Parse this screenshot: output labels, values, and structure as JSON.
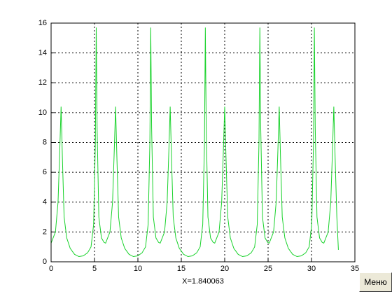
{
  "chart_data": {
    "type": "line",
    "xlabel": "X=1.840063",
    "color": "#19d22b",
    "grid": true,
    "xlim": [
      0,
      35
    ],
    "xticks": [
      0,
      5,
      10,
      15,
      20,
      25,
      30,
      35
    ],
    "ylim": [
      0,
      16
    ],
    "yticks": [
      0,
      2,
      4,
      6,
      8,
      10,
      12,
      14,
      16
    ],
    "x": [
      0,
      0.5,
      0.8,
      1.0,
      1.15,
      1.3,
      1.5,
      1.8,
      2.2,
      2.7,
      3.2,
      3.7,
      4.2,
      4.6,
      4.9,
      5.1,
      5.2,
      5.3,
      5.5,
      5.8,
      6.1,
      6.28,
      6.78,
      7.08,
      7.28,
      7.43,
      7.58,
      7.78,
      8.08,
      8.48,
      8.98,
      9.48,
      9.98,
      10.48,
      10.88,
      11.18,
      11.38,
      11.48,
      11.58,
      11.78,
      12.08,
      12.38,
      12.57,
      13.07,
      13.37,
      13.57,
      13.72,
      13.87,
      14.07,
      14.37,
      14.77,
      15.27,
      15.77,
      16.27,
      16.77,
      17.17,
      17.47,
      17.67,
      17.77,
      17.87,
      18.07,
      18.37,
      18.67,
      18.85,
      19.35,
      19.65,
      19.85,
      20.0,
      20.15,
      20.35,
      20.65,
      21.05,
      21.55,
      22.05,
      22.55,
      23.05,
      23.45,
      23.75,
      23.95,
      24.05,
      24.15,
      24.35,
      24.65,
      24.95,
      25.13,
      25.63,
      25.93,
      26.13,
      26.28,
      26.43,
      26.63,
      26.93,
      27.33,
      27.83,
      28.33,
      28.83,
      29.33,
      29.73,
      30.03,
      30.23,
      30.33,
      30.43,
      30.63,
      30.93,
      31.23,
      31.42,
      31.92,
      32.22,
      32.42,
      32.57,
      32.72,
      32.92,
      33.1
    ],
    "values": [
      1.25,
      2.0,
      4.0,
      7.5,
      10.4,
      7.0,
      3.0,
      1.6,
      0.9,
      0.5,
      0.35,
      0.4,
      0.6,
      1.0,
      2.5,
      8.0,
      15.7,
      9.0,
      3.0,
      1.6,
      1.3,
      1.25,
      2.0,
      4.0,
      7.5,
      10.4,
      7.0,
      3.0,
      1.6,
      0.9,
      0.5,
      0.35,
      0.4,
      0.6,
      1.0,
      2.5,
      8.0,
      15.7,
      9.0,
      3.0,
      1.6,
      1.3,
      1.25,
      2.0,
      4.0,
      7.5,
      10.4,
      7.0,
      3.0,
      1.6,
      0.9,
      0.5,
      0.35,
      0.4,
      0.6,
      1.0,
      2.5,
      8.0,
      15.7,
      9.0,
      3.0,
      1.6,
      1.3,
      1.25,
      2.0,
      4.0,
      7.5,
      10.4,
      7.0,
      3.0,
      1.6,
      0.9,
      0.5,
      0.35,
      0.4,
      0.6,
      1.0,
      2.5,
      8.0,
      15.7,
      9.0,
      3.0,
      1.6,
      1.3,
      1.25,
      2.0,
      4.0,
      7.5,
      10.4,
      7.0,
      3.0,
      1.6,
      0.9,
      0.5,
      0.35,
      0.4,
      0.6,
      1.0,
      2.5,
      8.0,
      15.7,
      9.0,
      3.0,
      1.6,
      1.3,
      1.25,
      2.0,
      4.0,
      7.5,
      10.4,
      7.0,
      3.0,
      0.8
    ]
  },
  "menu_button": "Меню"
}
